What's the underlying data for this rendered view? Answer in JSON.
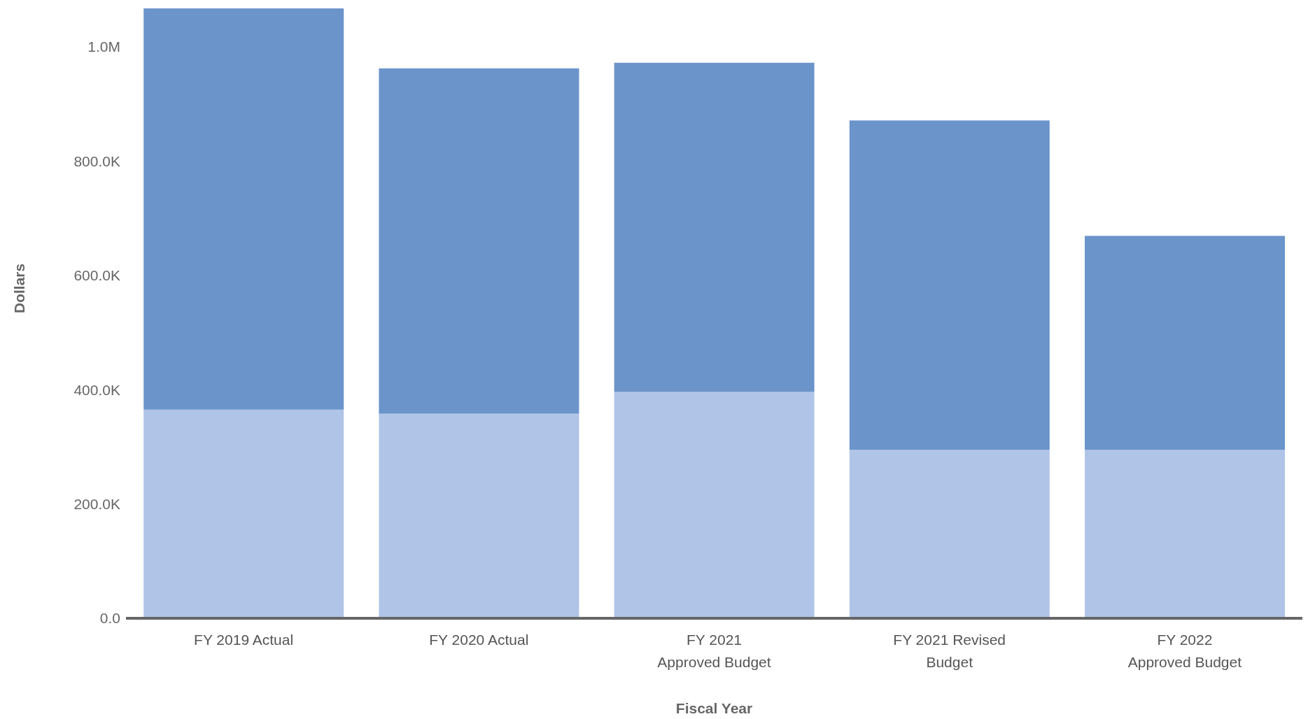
{
  "chart_data": {
    "type": "bar",
    "stacked": true,
    "xlabel": "Fiscal Year",
    "ylabel": "Dollars",
    "categories": [
      "FY 2019 Actual",
      "FY 2020 Actual",
      "FY 2021 Approved Budget",
      "FY 2021 Revised Budget",
      "FY 2022 Approved Budget"
    ],
    "series": [
      {
        "color": "#b0c4e8",
        "values": [
          365000,
          358000,
          396000,
          295000,
          295000
        ]
      },
      {
        "color": "#6b94cb",
        "values": [
          702000,
          604000,
          576000,
          576000,
          374000
        ]
      }
    ],
    "yticks": [
      {
        "value": 0,
        "label": "0.0"
      },
      {
        "value": 200000,
        "label": "200.0K"
      },
      {
        "value": 400000,
        "label": "400.0K"
      },
      {
        "value": 600000,
        "label": "600.0K"
      },
      {
        "value": 800000,
        "label": "800.0K"
      },
      {
        "value": 1000000,
        "label": "1.0M"
      }
    ],
    "ylim": [
      0,
      1067000
    ],
    "grid": false,
    "legend": false
  }
}
